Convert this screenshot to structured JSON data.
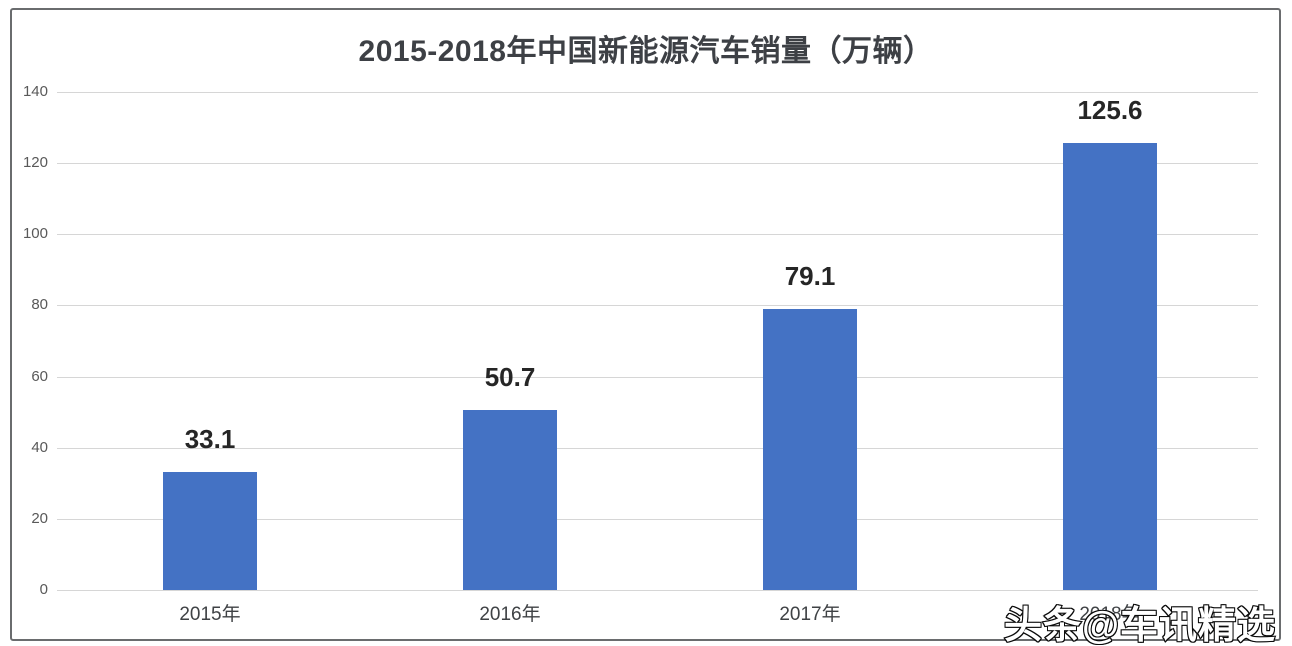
{
  "chart_data": {
    "type": "bar",
    "title": "2015-2018年中国新能源汽车销量（万辆）",
    "categories": [
      "2015年",
      "2016年",
      "2017年",
      "2018年"
    ],
    "values": [
      33.1,
      50.7,
      79.1,
      125.6
    ],
    "value_labels": [
      "33.1",
      "50.7",
      "79.1",
      "125.6"
    ],
    "xlabel": "",
    "ylabel": "",
    "ylim": [
      0,
      140
    ],
    "yticks": [
      0,
      20,
      40,
      60,
      80,
      100,
      120,
      140
    ],
    "grid": "horizontal",
    "legend_position": "none"
  },
  "watermark": {
    "text": "头条@车讯精选"
  },
  "colors": {
    "bar": "#4472c4",
    "grid": "#d6d6d6",
    "title": "#3d4045",
    "value_label": "#262626",
    "ytick_label": "#595959",
    "xtick_label": "#3f4245",
    "frame_border": "#6a6c6e",
    "background": "#ffffff"
  }
}
